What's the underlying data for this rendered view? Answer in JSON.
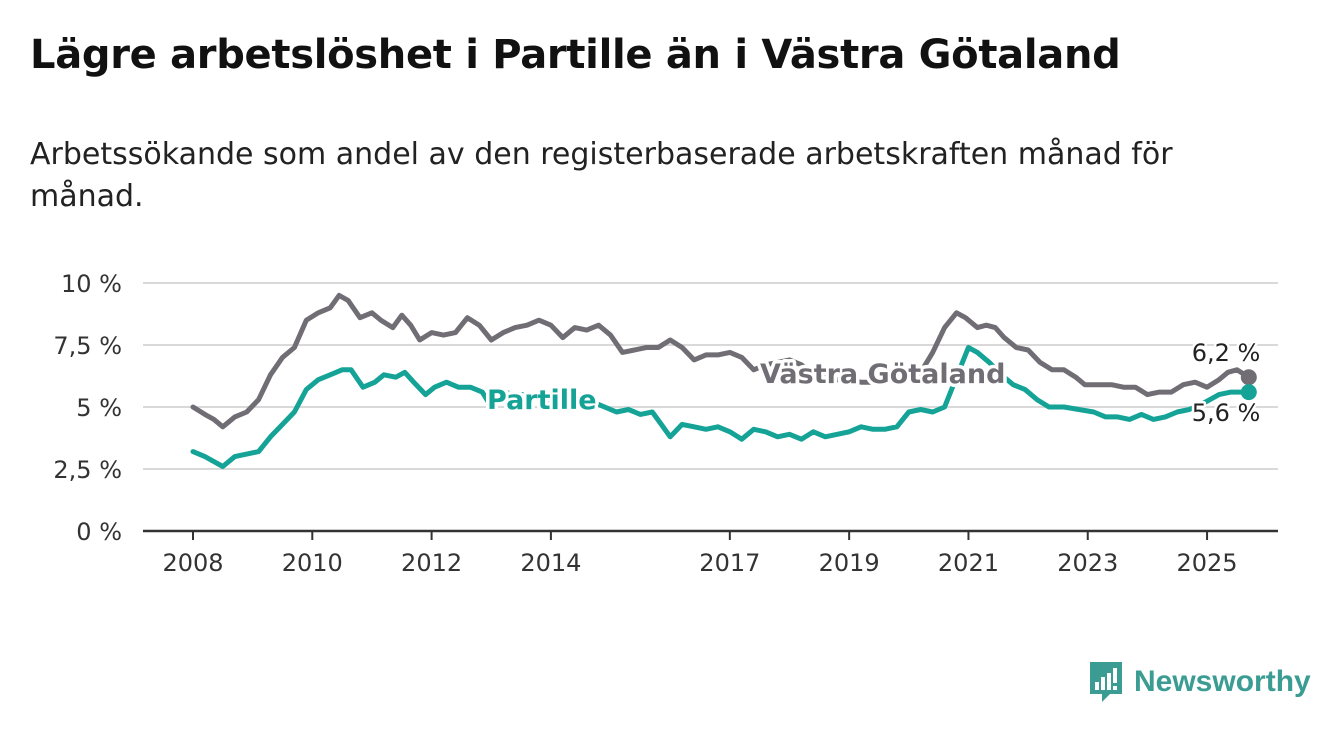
{
  "title": "Lägre arbetslöshet i Partille än i Västra Götaland",
  "subtitle": "Arbetssökande som andel av den registerbaserade arbetskraften månad för månad.",
  "brand": {
    "name": "Newsworthy"
  },
  "colors": {
    "partille": "#14a396",
    "vastra": "#706e74",
    "grid": "#d9d9d9",
    "axis": "#333333"
  },
  "chart_data": {
    "type": "line",
    "title": "Lägre arbetslöshet i Partille än i Västra Götaland",
    "xlabel": "",
    "ylabel": "",
    "xlim": [
      2008,
      2025.5
    ],
    "ylim": [
      0,
      10
    ],
    "x_ticks": [
      2008,
      2010,
      2012,
      2014,
      2017,
      2019,
      2021,
      2023,
      2025
    ],
    "y_ticks": [
      {
        "value": 0,
        "label": "0 %"
      },
      {
        "value": 2.5,
        "label": "2,5 %"
      },
      {
        "value": 5,
        "label": "5 %"
      },
      {
        "value": 7.5,
        "label": "7,5 %"
      },
      {
        "value": 10,
        "label": "10 %"
      }
    ],
    "grid": true,
    "series": [
      {
        "name": "Västra Götaland",
        "end_label": "6,2 %",
        "points": [
          [
            2008.0,
            5.0
          ],
          [
            2008.2,
            4.7
          ],
          [
            2008.35,
            4.5
          ],
          [
            2008.5,
            4.2
          ],
          [
            2008.7,
            4.6
          ],
          [
            2008.9,
            4.8
          ],
          [
            2009.1,
            5.3
          ],
          [
            2009.3,
            6.3
          ],
          [
            2009.5,
            7.0
          ],
          [
            2009.7,
            7.4
          ],
          [
            2009.9,
            8.5
          ],
          [
            2010.1,
            8.8
          ],
          [
            2010.3,
            9.0
          ],
          [
            2010.45,
            9.5
          ],
          [
            2010.6,
            9.3
          ],
          [
            2010.8,
            8.6
          ],
          [
            2011.0,
            8.8
          ],
          [
            2011.15,
            8.5
          ],
          [
            2011.35,
            8.2
          ],
          [
            2011.5,
            8.7
          ],
          [
            2011.65,
            8.3
          ],
          [
            2011.8,
            7.7
          ],
          [
            2012.0,
            8.0
          ],
          [
            2012.2,
            7.9
          ],
          [
            2012.4,
            8.0
          ],
          [
            2012.6,
            8.6
          ],
          [
            2012.8,
            8.3
          ],
          [
            2013.0,
            7.7
          ],
          [
            2013.2,
            8.0
          ],
          [
            2013.4,
            8.2
          ],
          [
            2013.6,
            8.3
          ],
          [
            2013.8,
            8.5
          ],
          [
            2014.0,
            8.3
          ],
          [
            2014.2,
            7.8
          ],
          [
            2014.4,
            8.2
          ],
          [
            2014.6,
            8.1
          ],
          [
            2014.8,
            8.3
          ],
          [
            2015.0,
            7.9
          ],
          [
            2015.2,
            7.2
          ],
          [
            2015.4,
            7.3
          ],
          [
            2015.6,
            7.4
          ],
          [
            2015.8,
            7.4
          ],
          [
            2016.0,
            7.7
          ],
          [
            2016.2,
            7.4
          ],
          [
            2016.4,
            6.9
          ],
          [
            2016.6,
            7.1
          ],
          [
            2016.8,
            7.1
          ],
          [
            2017.0,
            7.2
          ],
          [
            2017.2,
            7.0
          ],
          [
            2017.4,
            6.5
          ],
          [
            2017.6,
            6.7
          ],
          [
            2017.8,
            6.8
          ],
          [
            2018.0,
            6.9
          ],
          [
            2018.2,
            6.7
          ],
          [
            2018.4,
            6.3
          ],
          [
            2018.6,
            6.2
          ],
          [
            2018.8,
            6.1
          ],
          [
            2019.0,
            6.1
          ],
          [
            2019.2,
            6.0
          ],
          [
            2019.4,
            6.0
          ],
          [
            2019.6,
            6.1
          ],
          [
            2019.8,
            6.2
          ],
          [
            2020.0,
            6.1
          ],
          [
            2020.2,
            6.4
          ],
          [
            2020.4,
            7.2
          ],
          [
            2020.6,
            8.2
          ],
          [
            2020.8,
            8.8
          ],
          [
            2020.95,
            8.6
          ],
          [
            2021.15,
            8.2
          ],
          [
            2021.3,
            8.3
          ],
          [
            2021.45,
            8.2
          ],
          [
            2021.6,
            7.8
          ],
          [
            2021.8,
            7.4
          ],
          [
            2022.0,
            7.3
          ],
          [
            2022.2,
            6.8
          ],
          [
            2022.4,
            6.5
          ],
          [
            2022.6,
            6.5
          ],
          [
            2022.8,
            6.2
          ],
          [
            2022.95,
            5.9
          ],
          [
            2023.2,
            5.9
          ],
          [
            2023.4,
            5.9
          ],
          [
            2023.6,
            5.8
          ],
          [
            2023.8,
            5.8
          ],
          [
            2024.0,
            5.5
          ],
          [
            2024.2,
            5.6
          ],
          [
            2024.4,
            5.6
          ],
          [
            2024.6,
            5.9
          ],
          [
            2024.8,
            6.0
          ],
          [
            2025.0,
            5.8
          ],
          [
            2025.2,
            6.1
          ],
          [
            2025.35,
            6.4
          ],
          [
            2025.5,
            6.5
          ],
          [
            2025.7,
            6.2
          ]
        ]
      },
      {
        "name": "Partille",
        "end_label": "5,6 %",
        "points": [
          [
            2008.0,
            3.2
          ],
          [
            2008.2,
            3.0
          ],
          [
            2008.35,
            2.8
          ],
          [
            2008.5,
            2.6
          ],
          [
            2008.7,
            3.0
          ],
          [
            2008.9,
            3.1
          ],
          [
            2009.1,
            3.2
          ],
          [
            2009.3,
            3.8
          ],
          [
            2009.5,
            4.3
          ],
          [
            2009.7,
            4.8
          ],
          [
            2009.9,
            5.7
          ],
          [
            2010.1,
            6.1
          ],
          [
            2010.3,
            6.3
          ],
          [
            2010.5,
            6.5
          ],
          [
            2010.65,
            6.5
          ],
          [
            2010.85,
            5.8
          ],
          [
            2011.05,
            6.0
          ],
          [
            2011.2,
            6.3
          ],
          [
            2011.4,
            6.2
          ],
          [
            2011.55,
            6.4
          ],
          [
            2011.7,
            6.0
          ],
          [
            2011.9,
            5.5
          ],
          [
            2012.05,
            5.8
          ],
          [
            2012.25,
            6.0
          ],
          [
            2012.45,
            5.8
          ],
          [
            2012.65,
            5.8
          ],
          [
            2012.85,
            5.6
          ],
          [
            2013.0,
            5.0
          ],
          [
            2013.2,
            5.6
          ],
          [
            2013.4,
            5.5
          ],
          [
            2013.6,
            5.5
          ],
          [
            2013.85,
            5.3
          ],
          [
            2014.1,
            5.1
          ],
          [
            2014.3,
            5.2
          ],
          [
            2014.5,
            5.4
          ],
          [
            2014.7,
            5.2
          ],
          [
            2014.9,
            5.0
          ],
          [
            2015.1,
            4.8
          ],
          [
            2015.3,
            4.9
          ],
          [
            2015.5,
            4.7
          ],
          [
            2015.7,
            4.8
          ],
          [
            2015.85,
            4.3
          ],
          [
            2016.0,
            3.8
          ],
          [
            2016.2,
            4.3
          ],
          [
            2016.4,
            4.2
          ],
          [
            2016.6,
            4.1
          ],
          [
            2016.8,
            4.2
          ],
          [
            2017.0,
            4.0
          ],
          [
            2017.2,
            3.7
          ],
          [
            2017.4,
            4.1
          ],
          [
            2017.6,
            4.0
          ],
          [
            2017.8,
            3.8
          ],
          [
            2018.0,
            3.9
          ],
          [
            2018.2,
            3.7
          ],
          [
            2018.4,
            4.0
          ],
          [
            2018.6,
            3.8
          ],
          [
            2018.8,
            3.9
          ],
          [
            2019.0,
            4.0
          ],
          [
            2019.2,
            4.2
          ],
          [
            2019.4,
            4.1
          ],
          [
            2019.6,
            4.1
          ],
          [
            2019.8,
            4.2
          ],
          [
            2020.0,
            4.8
          ],
          [
            2020.2,
            4.9
          ],
          [
            2020.4,
            4.8
          ],
          [
            2020.6,
            5.0
          ],
          [
            2020.8,
            6.2
          ],
          [
            2021.0,
            7.4
          ],
          [
            2021.15,
            7.2
          ],
          [
            2021.35,
            6.8
          ],
          [
            2021.55,
            6.3
          ],
          [
            2021.75,
            5.9
          ],
          [
            2021.95,
            5.7
          ],
          [
            2022.15,
            5.3
          ],
          [
            2022.35,
            5.0
          ],
          [
            2022.6,
            5.0
          ],
          [
            2022.85,
            4.9
          ],
          [
            2023.1,
            4.8
          ],
          [
            2023.3,
            4.6
          ],
          [
            2023.5,
            4.6
          ],
          [
            2023.7,
            4.5
          ],
          [
            2023.9,
            4.7
          ],
          [
            2024.1,
            4.5
          ],
          [
            2024.3,
            4.6
          ],
          [
            2024.5,
            4.8
          ],
          [
            2024.7,
            4.9
          ],
          [
            2024.9,
            5.1
          ],
          [
            2025.05,
            5.3
          ],
          [
            2025.2,
            5.5
          ],
          [
            2025.4,
            5.6
          ],
          [
            2025.55,
            5.6
          ],
          [
            2025.7,
            5.6
          ]
        ]
      }
    ]
  }
}
